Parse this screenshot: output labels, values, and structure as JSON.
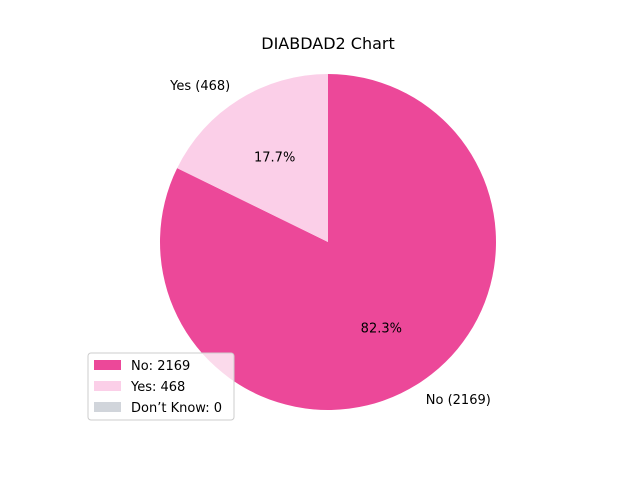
{
  "chart_data": {
    "type": "pie",
    "title": "DIABDAD2 Chart",
    "categories": [
      "No",
      "Yes",
      "Don’t Know"
    ],
    "values": [
      2169,
      468,
      0
    ],
    "slice_labels": [
      "No (2169)",
      "Yes (468)",
      ""
    ],
    "percent_labels": [
      "82.3%",
      "17.7%",
      ""
    ],
    "legend_entries": [
      "No: 2169",
      "Yes: 468",
      "Don’t Know: 0"
    ],
    "colors": [
      "#ec4899",
      "#fbcfe8",
      "#d1d5db"
    ],
    "start_angle_deg": 90,
    "direction": "clockwise",
    "legend_placement": "lower-left"
  }
}
